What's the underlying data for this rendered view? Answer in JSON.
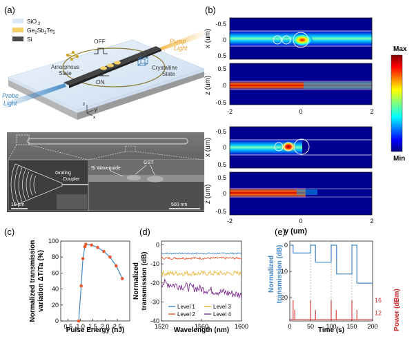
{
  "panels": {
    "a": "(a)",
    "b": "(b)",
    "c": "(c)",
    "d": "(d)",
    "e": "(e)"
  },
  "panel_a": {
    "legend": [
      "SiO",
      "Ge Sb Te",
      "Si"
    ],
    "legend_subscripts": [
      "2",
      "2",
      "2",
      "5"
    ],
    "off": "OFF",
    "on": "ON",
    "amorphous": [
      "Amorphous",
      "State"
    ],
    "crystalline": [
      "Crystalline",
      "State"
    ],
    "pump": [
      "Pump",
      "Light"
    ],
    "probe": [
      "Probe",
      "Light"
    ],
    "axes": [
      "z",
      "y",
      "x"
    ],
    "sem_labels": {
      "grating": [
        "Grating",
        "Coupler"
      ],
      "si_waveguide": "Si Waveguide",
      "gst": "GST",
      "scale1": "10 µm",
      "scale2": "500 nm"
    },
    "colors": {
      "sio2": "#dbe8f5",
      "gst": "#f4cf6b",
      "si": "#4a4a4a",
      "pump": "#f2b43c",
      "probe": "#3b84c4",
      "amorphous": "#c8a020",
      "crystalline": "#2f6fae"
    }
  },
  "panel_b": {
    "x_label": "x (um)",
    "z_label": "z (um)",
    "y_label": "y (um)",
    "x_ticks": [
      "-0.5",
      "0",
      "0.5"
    ],
    "z_ticks": [
      "0.5",
      "0",
      "-0.5"
    ],
    "y_ticks": [
      "-2",
      "0",
      "2"
    ],
    "colorbar_max": "Max",
    "colorbar_min": "Min"
  },
  "chart_data": [
    {
      "id": "c",
      "type": "line",
      "xlabel": "Pulse Energy (nJ)",
      "ylabel": "Normalized transmission variation ΔT/Ta (%)",
      "ylabel_lines": [
        "Normalized transmission",
        "variation ΔT/Ta (%)"
      ],
      "xlim": [
        0.2,
        3.0
      ],
      "ylim": [
        0,
        100
      ],
      "xticks": [
        0.5,
        1.0,
        1.5,
        2.0,
        2.5
      ],
      "yticks": [
        0,
        20,
        40,
        60,
        80,
        100
      ],
      "xtick_labels": [
        "0.5",
        "1.0",
        "1.5",
        "2.0",
        "2.5"
      ],
      "ytick_labels": [
        "0",
        "20",
        "40",
        "60",
        "80",
        "100"
      ],
      "x": [
        0.93,
        1.03,
        1.1,
        1.18,
        1.22,
        1.45,
        1.7,
        1.95,
        2.2,
        2.45,
        2.7
      ],
      "y": [
        0,
        44,
        78,
        93,
        96,
        95,
        92,
        87,
        80,
        69,
        53
      ],
      "line_color": "#3f86c8",
      "marker_color": "#e8582f"
    },
    {
      "id": "d",
      "type": "line",
      "xlabel": "Wavelength (nm)",
      "ylabel": "Normalized transmission (dB)",
      "ylabel_lines": [
        "Normalized",
        "transmission (dB)"
      ],
      "xlim": [
        1520,
        1600
      ],
      "ylim": [
        -40,
        2
      ],
      "xticks": [
        1520,
        1560,
        1600
      ],
      "yticks": [
        0,
        -10,
        -20,
        -30,
        -40
      ],
      "xtick_labels": [
        "1520",
        "1560",
        "1600"
      ],
      "ytick_labels": [
        "0",
        "-10",
        "-20",
        "-30",
        "-40"
      ],
      "series": [
        {
          "name": "Level 1",
          "color": "#3f86c8",
          "base": -4.5,
          "noise": 0.35,
          "slope": 0.0
        },
        {
          "name": "Level 2",
          "color": "#e8582f",
          "base": -7.0,
          "noise": 0.6,
          "slope": 0.0
        },
        {
          "name": "Level 3",
          "color": "#e8b530",
          "base": -15.0,
          "noise": 1.3,
          "slope": 0.0
        },
        {
          "name": "Level 4",
          "color": "#7b2d8e",
          "base": -20.0,
          "noise": 2.2,
          "slope": -0.08
        }
      ]
    },
    {
      "id": "e",
      "type": "line",
      "xlabel": "Time (s)",
      "ylabel_left": "Normalized transmission (dB)",
      "ylabel_left_lines": [
        "Normalized",
        "transmission (dB)"
      ],
      "ylabel_right": "Power (dBm)",
      "xlim": [
        0,
        200
      ],
      "ylim_left": [
        20,
        -2
      ],
      "xticks": [
        0,
        50,
        100,
        150,
        200
      ],
      "yticks_left": [
        0,
        10,
        20
      ],
      "xtick_labels": [
        "0",
        "50",
        "100",
        "150",
        "200"
      ],
      "ytick_left_labels": [
        "0",
        "10",
        "20"
      ],
      "ytick_right_labels": [
        "16",
        "12"
      ],
      "transmission": {
        "times": [
          0,
          8,
          8,
          50,
          50,
          62,
          62,
          100,
          100,
          113,
          113,
          150,
          150,
          162,
          162,
          200
        ],
        "values": [
          0,
          0,
          -3,
          -3,
          0,
          0,
          -6.5,
          -6.5,
          0,
          0,
          -11,
          -11,
          0,
          0,
          -14.5,
          -14.5
        ],
        "color": "#3f86c8"
      },
      "pulses": {
        "times": [
          8,
          12,
          50,
          62,
          100,
          112,
          150,
          162
        ],
        "power": [
          16,
          13,
          16,
          13,
          16,
          13,
          16,
          13
        ],
        "color": "#d22a2a"
      },
      "dashed_times": [
        50,
        100,
        150
      ]
    }
  ]
}
